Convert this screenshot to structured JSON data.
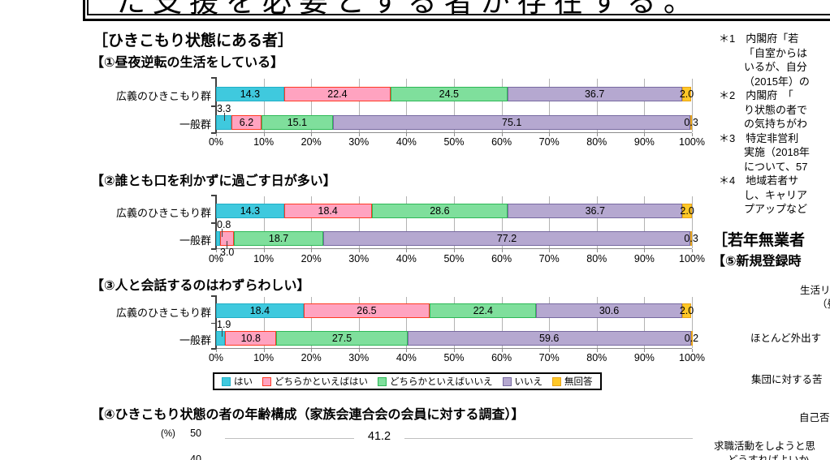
{
  "top_box": {
    "text_partial": "た支援を必要とする者が存在する。"
  },
  "sections": {
    "hikikomori_heading": "［ひきこもり状態にある者］"
  },
  "legend": {
    "items": [
      {
        "label": "はい",
        "fill": "#3FC9DE",
        "border": "#21AFC6",
        "pattern": "stripe"
      },
      {
        "label": "どちらかといえばはい",
        "fill": "#FFA3C0",
        "border": "#FF3B24",
        "pattern": "dot"
      },
      {
        "label": "どちらかといえばいいえ",
        "fill": "#7FDF9C",
        "border": "#2EB857",
        "pattern": "stripe"
      },
      {
        "label": "いいえ",
        "fill": "#B5A8D0",
        "border": "#776AA0",
        "pattern": "dot"
      },
      {
        "label": "無回答",
        "fill": "#FFC827",
        "border": "#E8A317",
        "pattern": "stripe"
      }
    ]
  },
  "chart_data": [
    {
      "type": "bar",
      "stacked": true,
      "orientation": "horizontal",
      "title": "【①昼夜逆転の生活をしている】",
      "categories": [
        "広義のひきこもり群",
        "一般群"
      ],
      "series": [
        {
          "name": "はい",
          "values": [
            14.3,
            3.3
          ]
        },
        {
          "name": "どちらかといえばはい",
          "values": [
            22.4,
            6.2
          ]
        },
        {
          "name": "どちらかといえばいいえ",
          "values": [
            24.5,
            15.1
          ]
        },
        {
          "name": "いいえ",
          "values": [
            36.7,
            75.1
          ]
        },
        {
          "name": "無回答",
          "values": [
            2.0,
            0.3
          ]
        }
      ],
      "xlim": [
        0,
        100
      ],
      "xticks": [
        "0%",
        "10%",
        "20%",
        "30%",
        "40%",
        "50%",
        "60%",
        "70%",
        "80%",
        "90%",
        "100%"
      ],
      "callouts": [
        {
          "row": 1,
          "seg": 0,
          "side": "above"
        }
      ]
    },
    {
      "type": "bar",
      "stacked": true,
      "orientation": "horizontal",
      "title": "【②誰とも口を利かずに過ごす日が多い】",
      "categories": [
        "広義のひきこもり群",
        "一般群"
      ],
      "series": [
        {
          "name": "はい",
          "values": [
            14.3,
            0.8
          ]
        },
        {
          "name": "どちらかといえばはい",
          "values": [
            18.4,
            3.0
          ]
        },
        {
          "name": "どちらかといえばいいえ",
          "values": [
            28.6,
            18.7
          ]
        },
        {
          "name": "いいえ",
          "values": [
            36.7,
            77.2
          ]
        },
        {
          "name": "無回答",
          "values": [
            2.0,
            0.3
          ]
        }
      ],
      "xlim": [
        0,
        100
      ],
      "xticks": [
        "0%",
        "10%",
        "20%",
        "30%",
        "40%",
        "50%",
        "60%",
        "70%",
        "80%",
        "90%",
        "100%"
      ],
      "callouts": [
        {
          "row": 1,
          "seg": 0,
          "side": "above"
        },
        {
          "row": 1,
          "seg": 1,
          "side": "below"
        }
      ]
    },
    {
      "type": "bar",
      "stacked": true,
      "orientation": "horizontal",
      "title": "【③人と会話するのはわずらわしい】",
      "categories": [
        "広義のひきこもり群",
        "一般群"
      ],
      "series": [
        {
          "name": "はい",
          "values": [
            18.4,
            1.9
          ]
        },
        {
          "name": "どちらかといえばはい",
          "values": [
            26.5,
            10.8
          ]
        },
        {
          "name": "どちらかといえばいいえ",
          "values": [
            22.4,
            27.5
          ]
        },
        {
          "name": "いいえ",
          "values": [
            30.6,
            59.6
          ]
        },
        {
          "name": "無回答",
          "values": [
            2.0,
            0.2
          ]
        }
      ],
      "xlim": [
        0,
        100
      ],
      "xticks": [
        "0%",
        "10%",
        "20%",
        "30%",
        "40%",
        "50%",
        "60%",
        "70%",
        "80%",
        "90%",
        "100%"
      ],
      "callouts": [
        {
          "row": 1,
          "seg": 0,
          "side": "above"
        }
      ]
    },
    {
      "type": "bar",
      "title": "【④ひきこもり状態の者の年齢構成（家族会連合会の会員に対する調査）】",
      "ylabel_unit": "(%)",
      "ylim": [
        0,
        50
      ],
      "visible_yticks": [
        "50",
        "40"
      ],
      "visible_value_labels": [
        "41.2"
      ],
      "cropped": "bottom"
    }
  ],
  "footnotes": {
    "lines": [
      {
        "text": "＊1　内閣府「若",
        "indent": false
      },
      {
        "text": "「自室からは",
        "indent": true
      },
      {
        "text": "いるが、自分",
        "indent": true
      },
      {
        "text": "（2015年）の",
        "indent": true
      },
      {
        "text": "＊2　内閣府　「",
        "indent": false
      },
      {
        "text": "り状態の者で",
        "indent": true
      },
      {
        "text": "の気持ちがわ",
        "indent": true
      },
      {
        "text": "＊3　特定非営利",
        "indent": false
      },
      {
        "text": "実施（2018年",
        "indent": true
      },
      {
        "text": "について、57",
        "indent": true
      },
      {
        "text": "＊4　地域若者サ",
        "indent": false
      },
      {
        "text": "し、キャリア",
        "indent": true
      },
      {
        "text": "プアップなど",
        "indent": true
      }
    ]
  },
  "right_section": {
    "heading_partial": "［若年無業者",
    "subheading_partial": "【⑤新規登録時",
    "category_labels_partial": [
      "生活リ",
      "（昼",
      "ほとんど外出す",
      "集団に対する苦",
      "自己否",
      "求職活動をしようと思",
      "どうすればよいか"
    ]
  }
}
